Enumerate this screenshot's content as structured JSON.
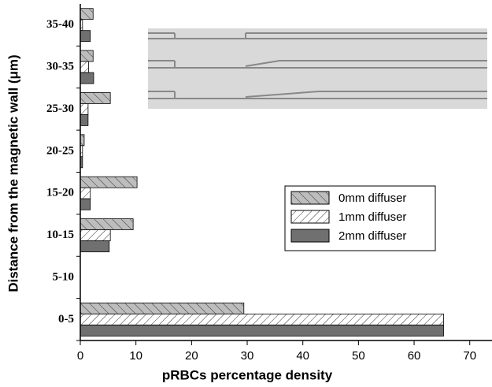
{
  "chart_data": {
    "type": "hbar",
    "xlabel": "pRBCs percentage density",
    "ylabel": "Distance from the magnetic wall (μm)",
    "categories": [
      "0-5",
      "5-10",
      "10-15",
      "15-20",
      "20-25",
      "25-30",
      "30-35",
      "35-40"
    ],
    "series": [
      {
        "name": "0mm diffuser",
        "color": "#bdbdbd",
        "values": [
          29.4,
          0,
          9.5,
          10.2,
          0.7,
          5.4,
          2.3,
          2.3
        ]
      },
      {
        "name": "1mm diffuser",
        "color": "#ffffff",
        "values": [
          65.3,
          0,
          5.4,
          1.8,
          0.4,
          1.4,
          1.5,
          0.4
        ]
      },
      {
        "name": "2mm diffuser",
        "color": "#707070",
        "values": [
          65.3,
          0,
          5.2,
          1.8,
          0.4,
          1.4,
          2.4,
          1.8
        ]
      }
    ],
    "xlim": [
      0,
      74
    ],
    "xticks": [
      0,
      10,
      20,
      30,
      40,
      50,
      60,
      70
    ]
  }
}
